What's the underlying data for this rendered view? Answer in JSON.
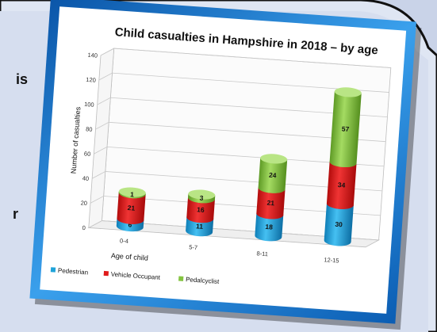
{
  "slide": {
    "fragment_top": "is",
    "fragment_bottom": "r"
  },
  "colors": {
    "pedestrian": "#1fa3d9",
    "vehicle_occupant": "#e01b1b",
    "pedalcyclist": "#84c441",
    "chart_bg": "#ffffff",
    "frame": "#1a6fc1"
  },
  "chart_data": {
    "type": "bar",
    "stacked": true,
    "three_d": true,
    "title": "Child casualties in Hampshire in 2018 – by age",
    "xlabel": "Age of child",
    "ylabel": "Number of casualties",
    "ylim": [
      0,
      140
    ],
    "yticks": [
      0,
      20,
      40,
      60,
      80,
      100,
      120,
      140
    ],
    "grid": true,
    "legend_position": "bottom-left",
    "categories": [
      "0-4",
      "5-7",
      "8-11",
      "12-15"
    ],
    "series": [
      {
        "name": "Pedestrian",
        "values": [
          6,
          11,
          18,
          30
        ]
      },
      {
        "name": "Vehicle Occupant",
        "values": [
          21,
          16,
          21,
          34
        ]
      },
      {
        "name": "Pedalcyclist",
        "values": [
          1,
          3,
          24,
          57
        ]
      }
    ]
  }
}
